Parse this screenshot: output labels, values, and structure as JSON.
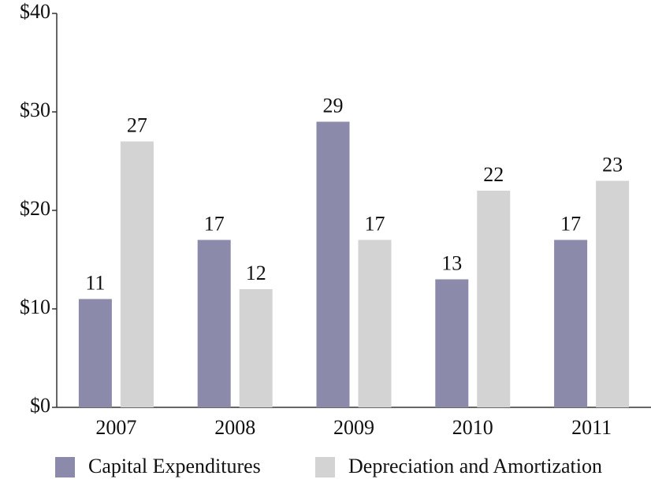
{
  "chart_data": {
    "type": "bar",
    "categories": [
      "2007",
      "2008",
      "2009",
      "2010",
      "2011"
    ],
    "series": [
      {
        "name": "Capital Expenditures",
        "color": "#8b8aab",
        "values": [
          11,
          17,
          29,
          13,
          17
        ]
      },
      {
        "name": "Depreciation and Amortization",
        "color": "#d3d3d3",
        "values": [
          27,
          12,
          17,
          22,
          23
        ]
      }
    ],
    "ylim": [
      0,
      40
    ],
    "yticks": [
      {
        "value": 0,
        "label": "$0"
      },
      {
        "value": 10,
        "label": "$10"
      },
      {
        "value": 20,
        "label": "$20"
      },
      {
        "value": 30,
        "label": "$30"
      },
      {
        "value": 40,
        "label": "$40"
      }
    ],
    "grid": false,
    "legend": "bottom"
  }
}
